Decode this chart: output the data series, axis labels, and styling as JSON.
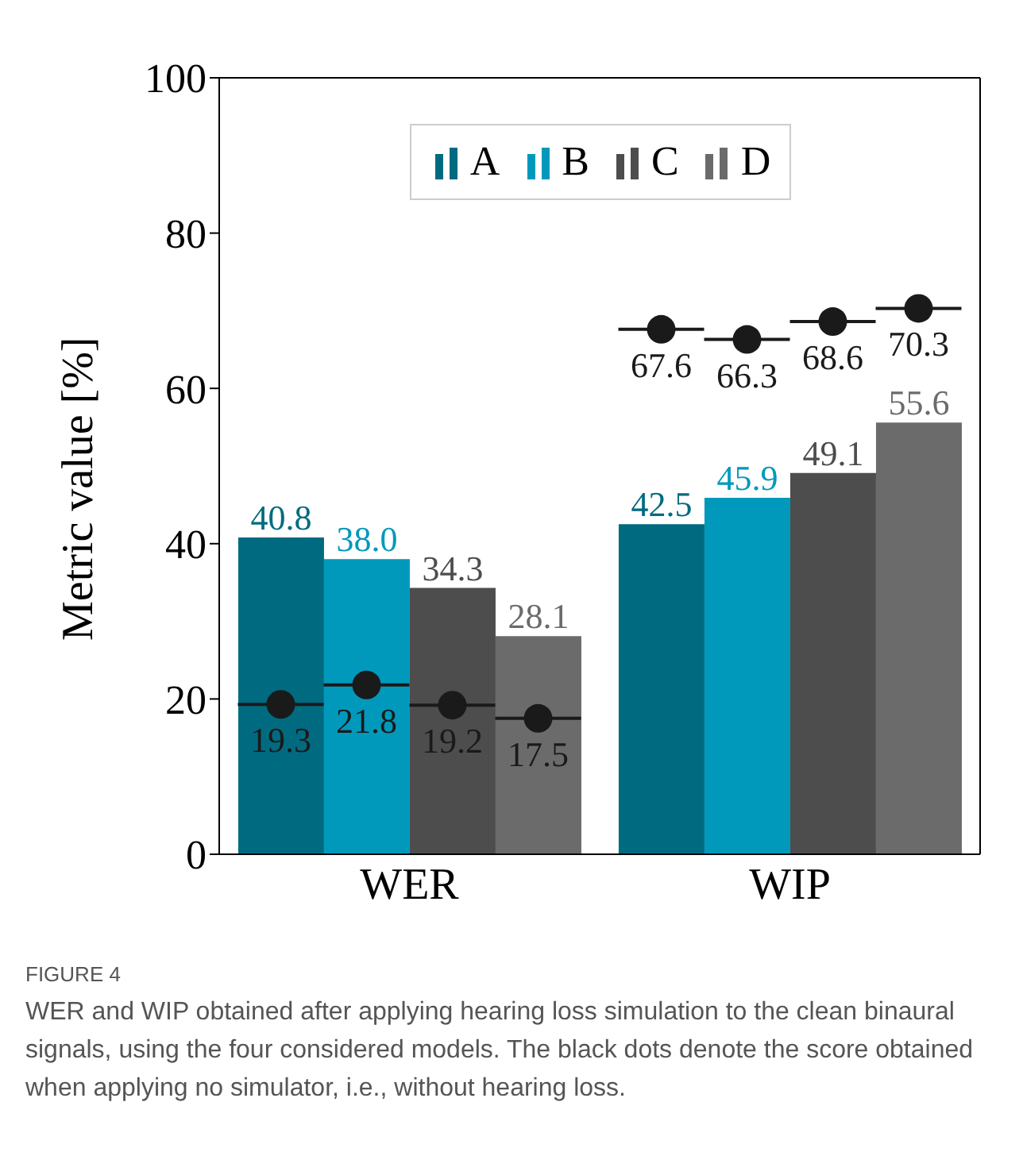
{
  "chart_data": {
    "type": "bar",
    "categories": [
      "WER",
      "WIP"
    ],
    "ylabel": "Metric value [%]",
    "ylim": [
      0,
      100
    ],
    "yticks": [
      0,
      20,
      40,
      60,
      80,
      100
    ],
    "legend": "top",
    "data_labels": true,
    "series": [
      {
        "name": "A",
        "color": "#006b80",
        "values": [
          40.8,
          42.5
        ]
      },
      {
        "name": "B",
        "color": "#0099bb",
        "values": [
          38.0,
          45.9
        ],
        "value_labels": [
          "38.0",
          "45.9"
        ]
      },
      {
        "name": "C",
        "color": "#4d4d4d",
        "values": [
          34.3,
          49.1
        ]
      },
      {
        "name": "D",
        "color": "#6b6b6b",
        "values": [
          28.1,
          55.6
        ]
      },
      {
        "type": "scatter",
        "color": "#1a1a1a",
        "x": [
          "WER",
          "WIP"
        ],
        "values": [
          19.3,
          67.6
        ]
      },
      {
        "type": "scatter",
        "color": "#1a1a1a",
        "x": [
          "WER",
          "WIP"
        ],
        "values": [
          21.8,
          66.3
        ]
      },
      {
        "type": "scatter",
        "color": "#1a1a1a",
        "x": [
          "WER",
          "WIP"
        ],
        "values": [
          19.2,
          68.6
        ]
      },
      {
        "type": "scatter",
        "color": "#1a1a1a",
        "x": [
          "WER",
          "WIP"
        ],
        "values": [
          17.5,
          70.3
        ]
      }
    ],
    "annotations": [
      "FIGURE 4",
      "WER and WIP obtained after applying hearing loss simulation to the clean binaural signals, using the four considered models. The black dots denote the score obtained when applying no simulator, i.e., without hearing loss."
    ]
  }
}
